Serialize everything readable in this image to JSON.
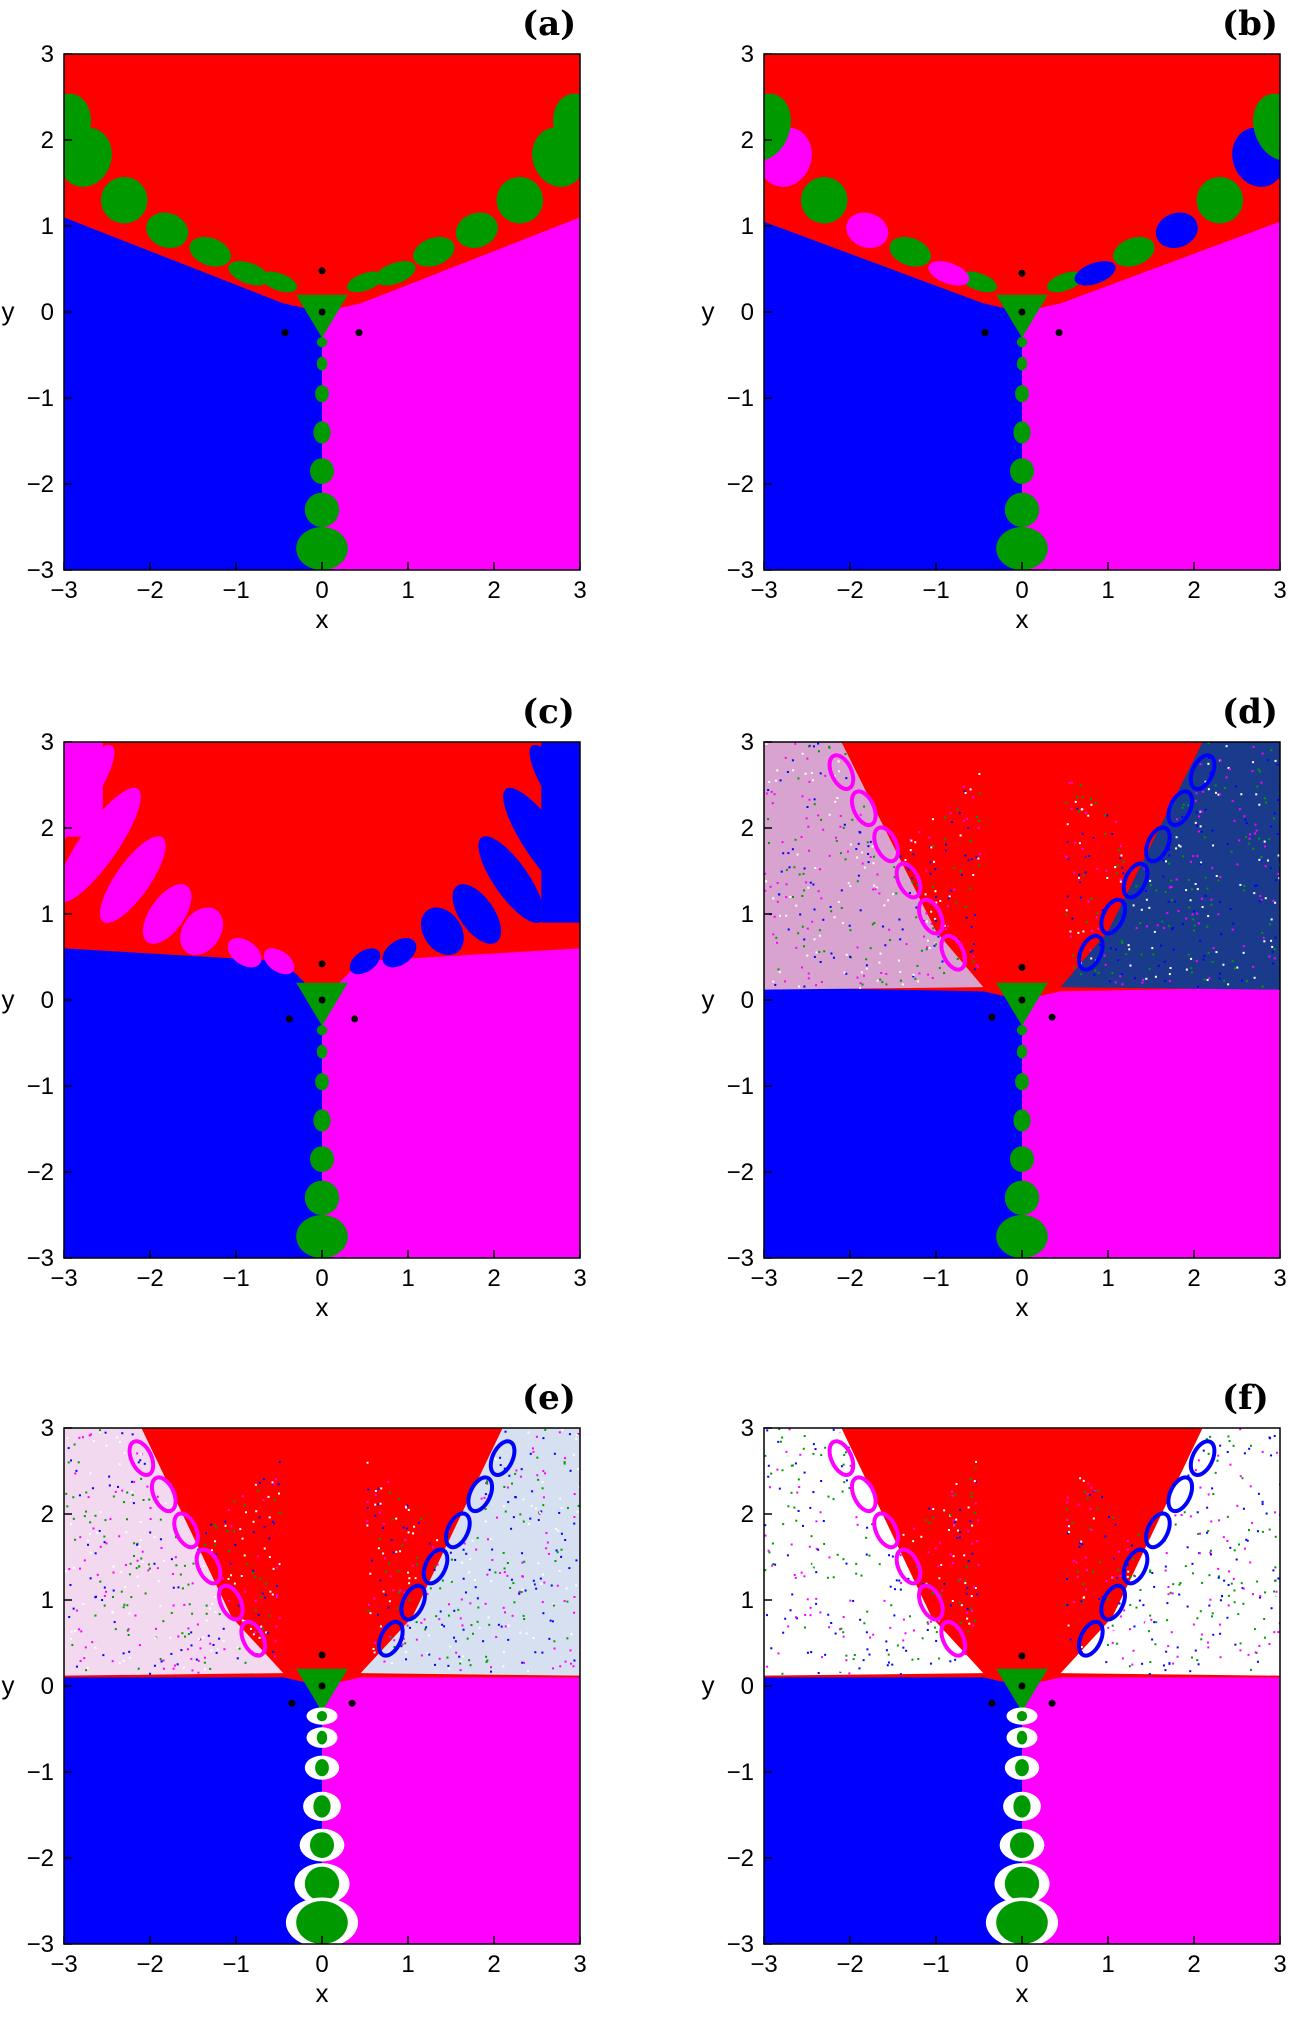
{
  "colors": {
    "red_basin": "#ff0000",
    "blue_basin": "#0000ff",
    "magenta_basin": "#ff00ff",
    "green_basin": "#009a00",
    "nonconverging": "#ffffff",
    "equilibrium_point": "#000000"
  },
  "axes": {
    "xlabel": "x",
    "ylabel": "y",
    "xlim": [
      -3,
      3
    ],
    "ylim": [
      -3,
      3
    ],
    "x_ticks": [
      "−3",
      "−2",
      "−1",
      "0",
      "1",
      "2",
      "3"
    ],
    "y_ticks": [
      "3",
      "2",
      "1",
      "0",
      "−1",
      "−2",
      "−3"
    ]
  },
  "panels": [
    {
      "label": "(a)",
      "equilibria": [
        [
          0,
          0.48
        ],
        [
          0,
          0
        ],
        [
          -0.43,
          -0.24
        ],
        [
          0.43,
          -0.24
        ]
      ],
      "variant": "a"
    },
    {
      "label": "(b)",
      "equilibria": [
        [
          0,
          0.45
        ],
        [
          0,
          0
        ],
        [
          -0.43,
          -0.24
        ],
        [
          0.43,
          -0.24
        ]
      ],
      "variant": "b"
    },
    {
      "label": "(c)",
      "equilibria": [
        [
          0,
          0.42
        ],
        [
          0,
          0
        ],
        [
          -0.38,
          -0.22
        ],
        [
          0.38,
          -0.22
        ]
      ],
      "variant": "c"
    },
    {
      "label": "(d)",
      "equilibria": [
        [
          0,
          0.38
        ],
        [
          0,
          0
        ],
        [
          -0.35,
          -0.2
        ],
        [
          0.35,
          -0.2
        ]
      ],
      "variant": "d"
    },
    {
      "label": "(e)",
      "equilibria": [
        [
          0,
          0.36
        ],
        [
          0,
          0
        ],
        [
          -0.35,
          -0.2
        ],
        [
          0.35,
          -0.2
        ]
      ],
      "variant": "e"
    },
    {
      "label": "(f)",
      "equilibria": [
        [
          0,
          0.35
        ],
        [
          0,
          0
        ],
        [
          -0.35,
          -0.2
        ],
        [
          0.35,
          -0.2
        ]
      ],
      "variant": "f"
    }
  ]
}
